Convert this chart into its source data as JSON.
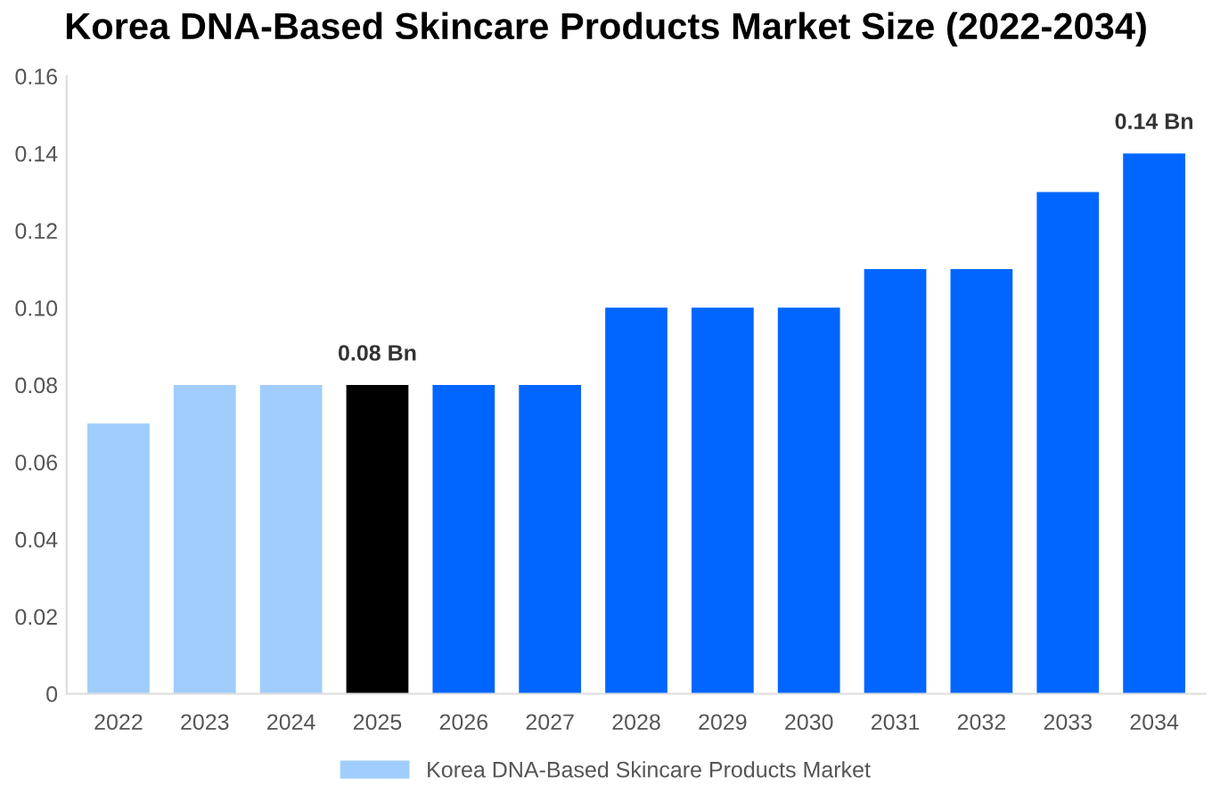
{
  "chart_data": {
    "type": "bar",
    "title": "Korea DNA-Based Skincare Products Market Size (2022-2034)",
    "categories": [
      "2022",
      "2023",
      "2024",
      "2025",
      "2026",
      "2027",
      "2028",
      "2029",
      "2030",
      "2031",
      "2032",
      "2033",
      "2034"
    ],
    "series": [
      {
        "name": "Korea DNA-Based Skincare Products Market",
        "color": "#a0cdfc",
        "colors": [
          "#a0cdfc",
          "#a0cdfc",
          "#a0cdfc",
          "#000000",
          "#0066ff",
          "#0066ff",
          "#0066ff",
          "#0066ff",
          "#0066ff",
          "#0066ff",
          "#0066ff",
          "#0066ff",
          "#0066ff"
        ],
        "values": [
          0.07,
          0.08,
          0.08,
          0.08,
          0.08,
          0.08,
          0.1,
          0.1,
          0.1,
          0.11,
          0.11,
          0.13,
          0.14
        ],
        "value_labels": [
          null,
          null,
          null,
          "0.08 Bn",
          null,
          null,
          null,
          null,
          null,
          null,
          null,
          null,
          "0.14 Bn"
        ]
      }
    ],
    "ylim": [
      0,
      0.16
    ],
    "yticks": [
      {
        "value": 0,
        "label": "0"
      },
      {
        "value": 0.02,
        "label": "0.02"
      },
      {
        "value": 0.04,
        "label": "0.04"
      },
      {
        "value": 0.06,
        "label": "0.06"
      },
      {
        "value": 0.08,
        "label": "0.08"
      },
      {
        "value": 0.1,
        "label": "0.10"
      },
      {
        "value": 0.12,
        "label": "0.12"
      },
      {
        "value": 0.14,
        "label": "0.14"
      },
      {
        "value": 0.16,
        "label": "0.16"
      }
    ],
    "grid": false,
    "legend": "bottom"
  }
}
